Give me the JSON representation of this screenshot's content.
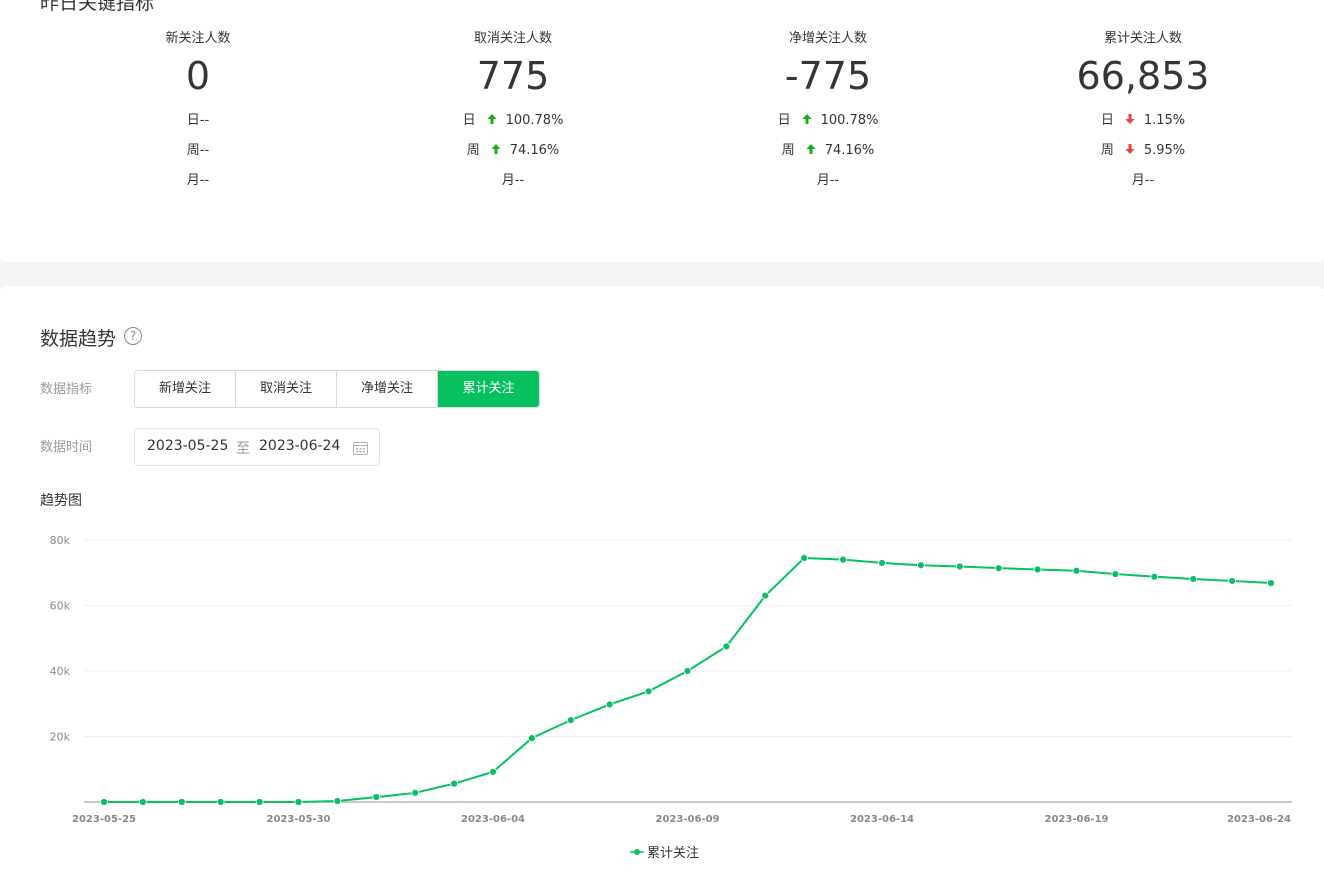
{
  "key_metrics": {
    "title": "昨日关键指标",
    "items": [
      {
        "label": "新关注人数",
        "value": "0",
        "day": "日--",
        "week": "周--",
        "month": "月--",
        "day_pct": "",
        "week_pct": ""
      },
      {
        "label": "取消关注人数",
        "value": "775",
        "day": "日",
        "day_pct": "100.78%",
        "day_dir": "up",
        "week": "周",
        "week_pct": "74.16%",
        "week_dir": "up",
        "month": "月--"
      },
      {
        "label": "净增关注人数",
        "value": "-775",
        "day": "日",
        "day_pct": "100.78%",
        "day_dir": "up",
        "week": "周",
        "week_pct": "74.16%",
        "week_dir": "up",
        "month": "月--"
      },
      {
        "label": "累计关注人数",
        "value": "66,853",
        "day": "日",
        "day_pct": "1.15%",
        "day_dir": "down",
        "week": "周",
        "week_pct": "5.95%",
        "week_dir": "down",
        "month": "月--"
      }
    ],
    "colors": {
      "up": "#1aad19",
      "down": "#e64340"
    }
  },
  "trend": {
    "title": "数据趋势",
    "help_icon": "question-circle-icon",
    "metric_label": "数据指标",
    "metric_tabs": [
      "新增关注",
      "取消关注",
      "净增关注",
      "累计关注"
    ],
    "active_tab": 3,
    "time_label": "数据时间",
    "date_start": "2023-05-25",
    "date_sep": "至",
    "date_end": "2023-06-24",
    "calendar_icon": "calendar-icon",
    "chart_title": "趋势图",
    "accent": "#07c160"
  },
  "chart_data": {
    "type": "line",
    "x": [
      "2023-05-25",
      "2023-05-26",
      "2023-05-27",
      "2023-05-28",
      "2023-05-29",
      "2023-05-30",
      "2023-05-31",
      "2023-06-01",
      "2023-06-02",
      "2023-06-03",
      "2023-06-04",
      "2023-06-05",
      "2023-06-06",
      "2023-06-07",
      "2023-06-08",
      "2023-06-09",
      "2023-06-10",
      "2023-06-11",
      "2023-06-12",
      "2023-06-13",
      "2023-06-14",
      "2023-06-15",
      "2023-06-16",
      "2023-06-17",
      "2023-06-18",
      "2023-06-19",
      "2023-06-20",
      "2023-06-21",
      "2023-06-22",
      "2023-06-23",
      "2023-06-24"
    ],
    "x_tick_labels": [
      "2023-05-25",
      "2023-05-30",
      "2023-06-04",
      "2023-06-09",
      "2023-06-14",
      "2023-06-19",
      "2023-06-24"
    ],
    "series": [
      {
        "name": "累计关注",
        "color": "#07c160",
        "values": [
          0,
          0,
          0,
          0,
          0,
          0,
          300,
          1500,
          2800,
          5600,
          9200,
          19500,
          25000,
          29800,
          33800,
          40000,
          47500,
          63000,
          74500,
          74000,
          73000,
          72300,
          71900,
          71400,
          71000,
          70600,
          69600,
          68800,
          68100,
          67500,
          66853
        ]
      }
    ],
    "y_ticks": [
      "20k",
      "40k",
      "60k",
      "80k"
    ],
    "ylim": [
      0,
      80000
    ],
    "grid": true,
    "legend": "bottom-center"
  }
}
